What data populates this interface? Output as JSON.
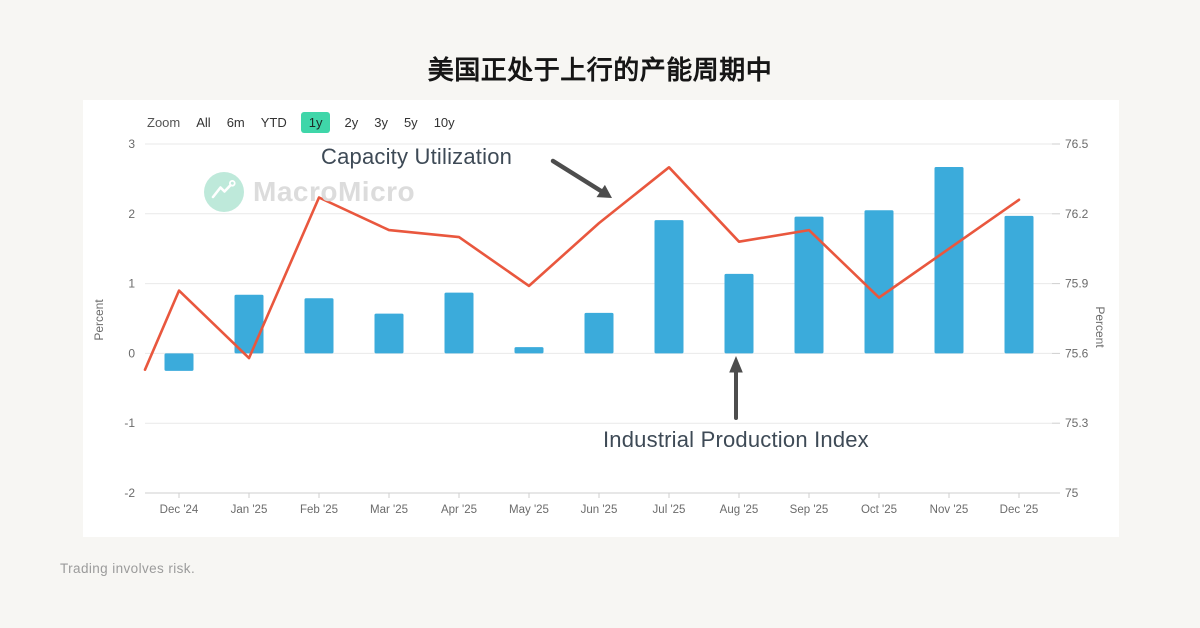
{
  "page": {
    "title": "美国正处于上行的产能周期中",
    "footer": "Trading involves risk.",
    "background": "#f7f6f3",
    "card_background": "#ffffff"
  },
  "toolbar": {
    "zoom_label": "Zoom",
    "ranges": [
      "All",
      "6m",
      "YTD",
      "1y",
      "2y",
      "3y",
      "5y",
      "10y"
    ],
    "selected": "1y",
    "selected_bg": "#3fd6a9"
  },
  "watermark": {
    "brand": "MacroMicro",
    "icon": "macromicro-logo-icon",
    "circle_color": "#bee9da",
    "text_color": "#dcdcdc"
  },
  "annotations": {
    "line_label": "Capacity Utilization",
    "bar_label": "Industrial Production Index",
    "arrow_color": "#4d4d4d"
  },
  "chart_data": {
    "type": "bar",
    "subtype": "bar+line dual axis",
    "categories": [
      "Dec '24",
      "Jan '25",
      "Feb '25",
      "Mar '25",
      "Apr '25",
      "May '25",
      "Jun '25",
      "Jul '25",
      "Aug '25",
      "Sep '25",
      "Oct '25",
      "Nov '25",
      "Dec '25"
    ],
    "series": [
      {
        "name": "Industrial Production Index",
        "type": "bar",
        "axis": "left",
        "color": "#3babdb",
        "values": [
          -0.25,
          0.84,
          0.79,
          0.57,
          0.87,
          0.09,
          0.58,
          1.91,
          1.14,
          1.96,
          2.05,
          2.67,
          1.97
        ]
      },
      {
        "name": "Capacity Utilization",
        "type": "line",
        "axis": "right",
        "color": "#e9573e",
        "values": [
          75.87,
          75.58,
          76.27,
          76.13,
          76.1,
          75.89,
          76.16,
          76.4,
          76.08,
          76.13,
          75.84,
          76.05,
          76.26
        ],
        "pre_edge_value": 75.53
      }
    ],
    "left_axis": {
      "label": "Percent",
      "min": -2,
      "max": 3,
      "ticks": [
        3,
        2,
        1,
        0,
        -1,
        -2
      ]
    },
    "right_axis": {
      "label": "Percent",
      "min": 75,
      "max": 76.5,
      "ticks": [
        76.5,
        76.2,
        75.9,
        75.6,
        75.3,
        75
      ]
    },
    "grid": true,
    "legend_position": "none",
    "tick_label_color": "#6b6b6b",
    "grid_color": "#e9e9e9",
    "axis_line_color": "#cfcfcf"
  }
}
